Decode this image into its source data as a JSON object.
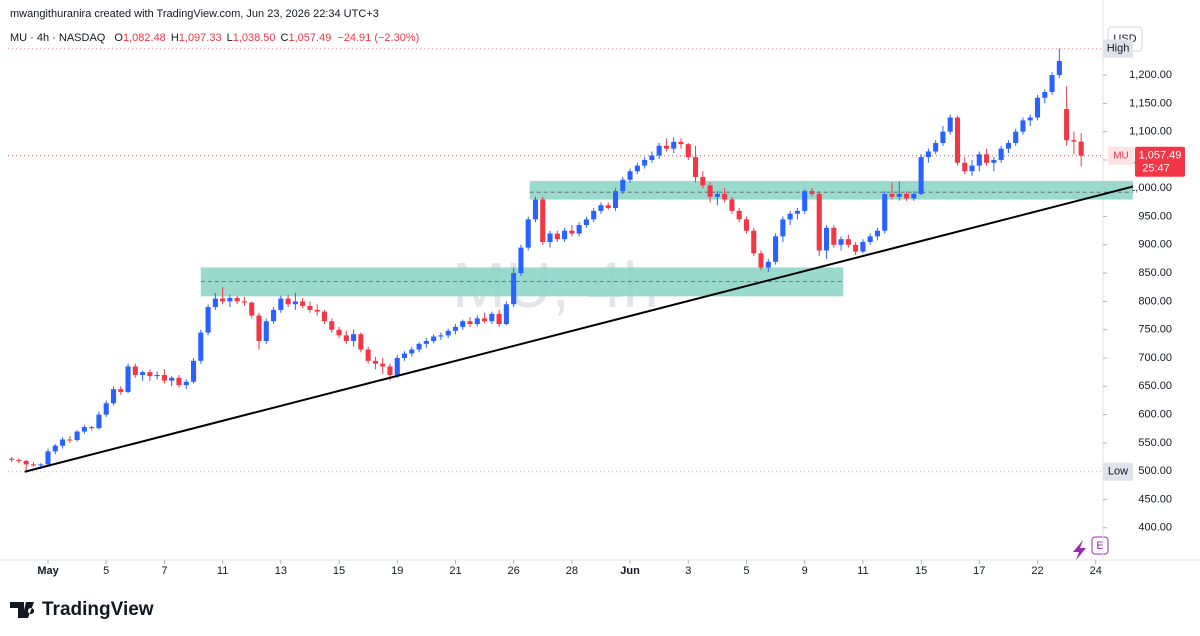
{
  "header": {
    "attribution": "mwangithuranira created with TradingView.com, Jun 23, 2026 22:34 UTC+3",
    "symbol": "MU · 4h · NASDAQ",
    "ohlc": [
      {
        "key": "O",
        "value": "1,082.48"
      },
      {
        "key": "H",
        "value": "1,097.33"
      },
      {
        "key": "L",
        "value": "1,038.50"
      },
      {
        "key": "C",
        "value": "1,057.49"
      }
    ],
    "change": "−24.91 (−2.30%)",
    "currency": "USD",
    "badge": "E",
    "footer": "TradingView"
  },
  "chart_data": {
    "type": "candlestick",
    "watermark": "MU, 4h",
    "up_color": "#2962ff",
    "down_color": "#f23645",
    "ylim": [
      343,
      1262
    ],
    "xlim": [
      -0.5,
      150
    ],
    "yticks": [
      {
        "value": 400,
        "label": "400.00"
      },
      {
        "value": 450,
        "label": "450.00"
      },
      {
        "value": 500,
        "label": "500.00"
      },
      {
        "value": 550,
        "label": "550.00"
      },
      {
        "value": 600,
        "label": "600.00"
      },
      {
        "value": 650,
        "label": "650.00"
      },
      {
        "value": 700,
        "label": "700.00"
      },
      {
        "value": 750,
        "label": "750.00"
      },
      {
        "value": 800,
        "label": "800.00"
      },
      {
        "value": 850,
        "label": "850.00"
      },
      {
        "value": 900,
        "label": "900.00"
      },
      {
        "value": 950,
        "label": "950.00"
      },
      {
        "value": 1000,
        "label": "1,000.00"
      },
      {
        "value": 1050,
        "label": "1,050.00"
      },
      {
        "value": 1100,
        "label": "1,100.00"
      },
      {
        "value": 1150,
        "label": "1,150.00"
      },
      {
        "value": 1200,
        "label": "1,200.00"
      }
    ],
    "xticks": [
      {
        "value": 5,
        "label": "May"
      },
      {
        "value": 13,
        "label": "5"
      },
      {
        "value": 21,
        "label": "7"
      },
      {
        "value": 29,
        "label": "11"
      },
      {
        "value": 37,
        "label": "13"
      },
      {
        "value": 45,
        "label": "15"
      },
      {
        "value": 53,
        "label": "19"
      },
      {
        "value": 61,
        "label": "21"
      },
      {
        "value": 69,
        "label": "26"
      },
      {
        "value": 77,
        "label": "28"
      },
      {
        "value": 85,
        "label": "Jun"
      },
      {
        "value": 93,
        "label": "3"
      },
      {
        "value": 101,
        "label": "5"
      },
      {
        "value": 109,
        "label": "9"
      },
      {
        "value": 117,
        "label": "11"
      },
      {
        "value": 125,
        "label": "15"
      },
      {
        "value": 133,
        "label": "17"
      },
      {
        "value": 141,
        "label": "22"
      },
      {
        "value": 149,
        "label": "24"
      }
    ],
    "high": {
      "label": "High",
      "value": 1247
    },
    "low": {
      "label": "Low",
      "value": 499
    },
    "last_price": {
      "symbol": "MU",
      "value": 1057.49,
      "label": "1,057.49",
      "countdown": "25:47"
    },
    "zones": [
      {
        "x": [
          71.2,
          154.1
        ],
        "y": [
          980,
          1013
        ],
        "mid": 993
      },
      {
        "x": [
          26,
          114.3
        ],
        "y": [
          809,
          860
        ],
        "mid": 835
      }
    ],
    "trendline": {
      "x": [
        1.8,
        154.1
      ],
      "y": [
        499,
        1003
      ]
    },
    "candles": [
      [
        522,
        525,
        516,
        520
      ],
      [
        520,
        523,
        514,
        518
      ],
      [
        518,
        520,
        499,
        512
      ],
      [
        512,
        516,
        508,
        510
      ],
      [
        510,
        514,
        504,
        512
      ],
      [
        512,
        540,
        510,
        535
      ],
      [
        535,
        548,
        530,
        545
      ],
      [
        545,
        560,
        540,
        556
      ],
      [
        556,
        562,
        550,
        555
      ],
      [
        555,
        572,
        552,
        570
      ],
      [
        570,
        582,
        566,
        578
      ],
      [
        578,
        580,
        572,
        576
      ],
      [
        576,
        605,
        574,
        600
      ],
      [
        600,
        625,
        596,
        620
      ],
      [
        620,
        650,
        616,
        645
      ],
      [
        645,
        650,
        635,
        640
      ],
      [
        640,
        690,
        638,
        685
      ],
      [
        685,
        690,
        665,
        670
      ],
      [
        670,
        678,
        660,
        675
      ],
      [
        675,
        680,
        660,
        668
      ],
      [
        668,
        676,
        662,
        670
      ],
      [
        670,
        680,
        655,
        660
      ],
      [
        660,
        668,
        650,
        665
      ],
      [
        665,
        670,
        648,
        652
      ],
      [
        652,
        662,
        645,
        658
      ],
      [
        658,
        700,
        655,
        695
      ],
      [
        695,
        750,
        690,
        745
      ],
      [
        745,
        795,
        740,
        790
      ],
      [
        790,
        815,
        785,
        805
      ],
      [
        805,
        825,
        795,
        800
      ],
      [
        800,
        812,
        790,
        806
      ],
      [
        806,
        810,
        795,
        800
      ],
      [
        800,
        808,
        792,
        798
      ],
      [
        798,
        800,
        770,
        775
      ],
      [
        775,
        780,
        715,
        730
      ],
      [
        730,
        770,
        725,
        765
      ],
      [
        765,
        790,
        760,
        785
      ],
      [
        785,
        810,
        780,
        805
      ],
      [
        805,
        812,
        790,
        795
      ],
      [
        795,
        815,
        785,
        800
      ],
      [
        800,
        806,
        788,
        792
      ],
      [
        792,
        800,
        780,
        785
      ],
      [
        785,
        795,
        775,
        782
      ],
      [
        782,
        785,
        760,
        765
      ],
      [
        765,
        770,
        745,
        750
      ],
      [
        750,
        755,
        735,
        740
      ],
      [
        740,
        748,
        725,
        730
      ],
      [
        730,
        750,
        720,
        742
      ],
      [
        742,
        745,
        710,
        715
      ],
      [
        715,
        720,
        690,
        695
      ],
      [
        695,
        702,
        680,
        690
      ],
      [
        690,
        700,
        672,
        685
      ],
      [
        685,
        690,
        660,
        670
      ],
      [
        670,
        705,
        665,
        700
      ],
      [
        700,
        712,
        695,
        708
      ],
      [
        708,
        720,
        702,
        715
      ],
      [
        715,
        728,
        710,
        725
      ],
      [
        725,
        735,
        718,
        730
      ],
      [
        730,
        742,
        726,
        738
      ],
      [
        738,
        745,
        732,
        740
      ],
      [
        740,
        752,
        735,
        748
      ],
      [
        748,
        760,
        742,
        755
      ],
      [
        755,
        768,
        750,
        765
      ],
      [
        765,
        772,
        755,
        760
      ],
      [
        760,
        775,
        756,
        770
      ],
      [
        770,
        780,
        762,
        765
      ],
      [
        765,
        782,
        760,
        778
      ],
      [
        778,
        785,
        755,
        760
      ],
      [
        760,
        800,
        758,
        795
      ],
      [
        795,
        860,
        790,
        850
      ],
      [
        850,
        900,
        845,
        895
      ],
      [
        895,
        950,
        890,
        945
      ],
      [
        945,
        985,
        940,
        980
      ],
      [
        980,
        985,
        900,
        905
      ],
      [
        905,
        925,
        895,
        920
      ],
      [
        920,
        925,
        905,
        910
      ],
      [
        910,
        930,
        905,
        925
      ],
      [
        925,
        935,
        915,
        920
      ],
      [
        920,
        940,
        915,
        935
      ],
      [
        935,
        950,
        930,
        945
      ],
      [
        945,
        965,
        940,
        960
      ],
      [
        960,
        975,
        955,
        970
      ],
      [
        970,
        975,
        962,
        965
      ],
      [
        965,
        1000,
        960,
        995
      ],
      [
        995,
        1020,
        990,
        1015
      ],
      [
        1015,
        1035,
        1010,
        1030
      ],
      [
        1030,
        1045,
        1025,
        1040
      ],
      [
        1040,
        1055,
        1035,
        1050
      ],
      [
        1050,
        1065,
        1045,
        1058
      ],
      [
        1058,
        1080,
        1052,
        1075
      ],
      [
        1075,
        1088,
        1065,
        1070
      ],
      [
        1070,
        1090,
        1062,
        1082
      ],
      [
        1082,
        1088,
        1070,
        1078
      ],
      [
        1078,
        1080,
        1050,
        1055
      ],
      [
        1055,
        1075,
        1010,
        1020
      ],
      [
        1020,
        1030,
        1000,
        1005
      ],
      [
        1005,
        1010,
        975,
        985
      ],
      [
        985,
        995,
        970,
        990
      ],
      [
        990,
        1000,
        975,
        980
      ],
      [
        980,
        985,
        955,
        960
      ],
      [
        960,
        965,
        940,
        945
      ],
      [
        945,
        950,
        920,
        925
      ],
      [
        925,
        930,
        880,
        885
      ],
      [
        885,
        890,
        855,
        860
      ],
      [
        860,
        875,
        852,
        870
      ],
      [
        870,
        920,
        865,
        915
      ],
      [
        915,
        950,
        905,
        945
      ],
      [
        945,
        960,
        935,
        955
      ],
      [
        955,
        965,
        945,
        960
      ],
      [
        960,
        998,
        955,
        995
      ],
      [
        995,
        1000,
        985,
        990
      ],
      [
        990,
        995,
        880,
        890
      ],
      [
        890,
        935,
        875,
        930
      ],
      [
        930,
        935,
        895,
        900
      ],
      [
        900,
        915,
        890,
        910
      ],
      [
        910,
        918,
        895,
        900
      ],
      [
        900,
        905,
        882,
        888
      ],
      [
        888,
        910,
        885,
        905
      ],
      [
        905,
        920,
        900,
        915
      ],
      [
        915,
        930,
        908,
        925
      ],
      [
        925,
        995,
        920,
        990
      ],
      [
        990,
        1010,
        980,
        985
      ],
      [
        985,
        1012,
        978,
        990
      ],
      [
        990,
        995,
        978,
        982
      ],
      [
        982,
        995,
        978,
        990
      ],
      [
        990,
        1060,
        988,
        1055
      ],
      [
        1055,
        1070,
        1045,
        1065
      ],
      [
        1065,
        1085,
        1060,
        1080
      ],
      [
        1080,
        1110,
        1075,
        1100
      ],
      [
        1100,
        1130,
        1095,
        1125
      ],
      [
        1125,
        1128,
        1040,
        1045
      ],
      [
        1045,
        1055,
        1025,
        1030
      ],
      [
        1030,
        1050,
        1022,
        1040
      ],
      [
        1040,
        1065,
        1030,
        1060
      ],
      [
        1060,
        1070,
        1040,
        1045
      ],
      [
        1045,
        1055,
        1030,
        1050
      ],
      [
        1050,
        1075,
        1045,
        1070
      ],
      [
        1070,
        1085,
        1062,
        1080
      ],
      [
        1080,
        1105,
        1075,
        1100
      ],
      [
        1100,
        1125,
        1095,
        1120
      ],
      [
        1120,
        1130,
        1110,
        1125
      ],
      [
        1125,
        1165,
        1120,
        1160
      ],
      [
        1160,
        1175,
        1150,
        1170
      ],
      [
        1170,
        1205,
        1165,
        1200
      ],
      [
        1200,
        1247,
        1195,
        1225
      ],
      [
        1140,
        1180,
        1075,
        1085
      ],
      [
        1085,
        1100,
        1060,
        1082.4
      ],
      [
        1082.48,
        1097.33,
        1038.5,
        1057.49
      ]
    ]
  }
}
